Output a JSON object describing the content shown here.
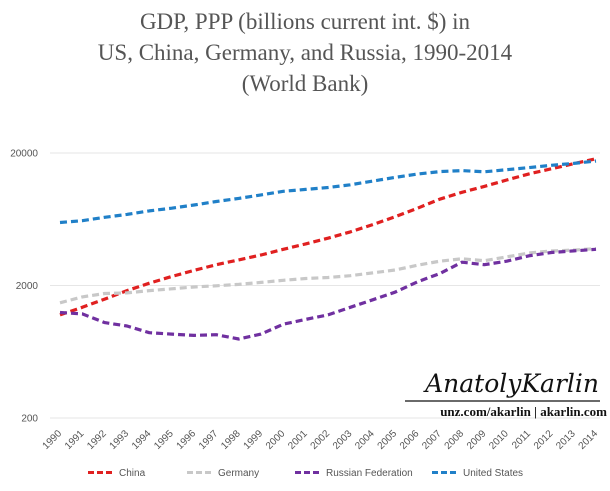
{
  "chart_data": {
    "type": "line",
    "title_lines": [
      "GDP, PPP (billions current int. $) in",
      "US, China, Germany, and Russia, 1990-2014",
      "(World Bank)"
    ],
    "y_scale": "log",
    "ylim": [
      200,
      20000
    ],
    "y_ticks": [
      "20000",
      "2000",
      "200"
    ],
    "x": [
      "1990",
      "1991",
      "1992",
      "1993",
      "1994",
      "1995",
      "1996",
      "1997",
      "1998",
      "1999",
      "2000",
      "2001",
      "2002",
      "2003",
      "2004",
      "2005",
      "2006",
      "2007",
      "2008",
      "2009",
      "2010",
      "2011",
      "2012",
      "2013",
      "2014"
    ],
    "grid": "horizontal",
    "legend_position": "bottom",
    "series": [
      {
        "name": "China",
        "color": "#e02020",
        "values": [
          1200,
          1370,
          1580,
          1830,
          2080,
          2340,
          2600,
          2870,
          3120,
          3400,
          3750,
          4120,
          4550,
          5080,
          5760,
          6600,
          7650,
          8960,
          10100,
          11200,
          12500,
          13900,
          15200,
          16600,
          18100
        ]
      },
      {
        "name": "Germany",
        "color": "#c8c8c8",
        "values": [
          1480,
          1640,
          1740,
          1760,
          1830,
          1890,
          1950,
          1990,
          2040,
          2110,
          2190,
          2260,
          2300,
          2370,
          2490,
          2620,
          2840,
          3050,
          3180,
          3080,
          3290,
          3520,
          3640,
          3700,
          3800
        ]
      },
      {
        "name": "Russian Federation",
        "color": "#7030a0",
        "values": [
          1250,
          1220,
          1050,
          990,
          880,
          860,
          840,
          850,
          790,
          860,
          1020,
          1110,
          1200,
          1370,
          1560,
          1780,
          2130,
          2460,
          3000,
          2870,
          3050,
          3350,
          3550,
          3650,
          3750
        ]
      },
      {
        "name": "United States",
        "color": "#2080c8",
        "values": [
          5980,
          6170,
          6540,
          6880,
          7310,
          7660,
          8100,
          8610,
          9090,
          9660,
          10280,
          10620,
          10980,
          11510,
          12270,
          13090,
          13860,
          14480,
          14720,
          14420,
          14960,
          15520,
          16160,
          16690,
          17390
        ]
      }
    ]
  },
  "watermark": {
    "signature": "AnatolyKarlin",
    "urls": "unz.com/akarlin | akarlin.com"
  }
}
